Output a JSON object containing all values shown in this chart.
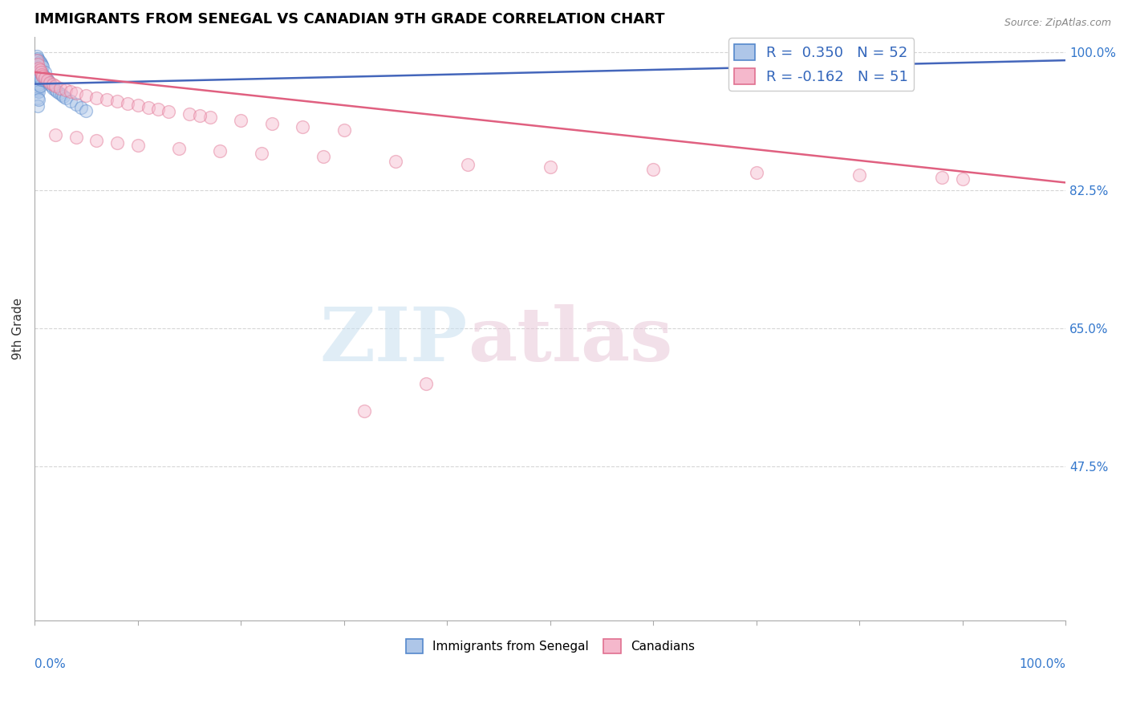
{
  "title": "IMMIGRANTS FROM SENEGAL VS CANADIAN 9TH GRADE CORRELATION CHART",
  "source": "Source: ZipAtlas.com",
  "ylabel": "9th Grade",
  "legend_r1": "R =  0.350",
  "legend_n1": "N = 52",
  "legend_r2": "R = -0.162",
  "legend_n2": "N = 51",
  "blue_color": "#aec6e8",
  "blue_edge": "#5588cc",
  "pink_color": "#f5b8cc",
  "pink_edge": "#e07090",
  "blue_line_color": "#4466bb",
  "pink_line_color": "#e06080",
  "watermark_zip": "ZIP",
  "watermark_atlas": "atlas",
  "blue_scatter_x": [
    0.001,
    0.001,
    0.001,
    0.002,
    0.002,
    0.002,
    0.002,
    0.002,
    0.003,
    0.003,
    0.003,
    0.003,
    0.003,
    0.003,
    0.003,
    0.004,
    0.004,
    0.004,
    0.004,
    0.004,
    0.004,
    0.005,
    0.005,
    0.005,
    0.005,
    0.006,
    0.006,
    0.006,
    0.007,
    0.007,
    0.008,
    0.008,
    0.009,
    0.01,
    0.01,
    0.011,
    0.012,
    0.013,
    0.014,
    0.015,
    0.016,
    0.018,
    0.02,
    0.022,
    0.024,
    0.026,
    0.028,
    0.03,
    0.035,
    0.04,
    0.045,
    0.05
  ],
  "blue_scatter_y": [
    0.99,
    0.98,
    0.97,
    0.995,
    0.985,
    0.975,
    0.965,
    0.955,
    0.992,
    0.982,
    0.972,
    0.962,
    0.952,
    0.942,
    0.932,
    0.99,
    0.98,
    0.97,
    0.96,
    0.95,
    0.94,
    0.988,
    0.978,
    0.968,
    0.958,
    0.986,
    0.976,
    0.966,
    0.984,
    0.974,
    0.982,
    0.972,
    0.97,
    0.975,
    0.965,
    0.968,
    0.966,
    0.964,
    0.962,
    0.96,
    0.958,
    0.955,
    0.952,
    0.95,
    0.948,
    0.946,
    0.944,
    0.942,
    0.938,
    0.934,
    0.93,
    0.926
  ],
  "pink_scatter_x": [
    0.002,
    0.003,
    0.004,
    0.005,
    0.006,
    0.007,
    0.008,
    0.01,
    0.012,
    0.015,
    0.018,
    0.02,
    0.025,
    0.03,
    0.035,
    0.04,
    0.05,
    0.06,
    0.07,
    0.08,
    0.09,
    0.1,
    0.11,
    0.12,
    0.13,
    0.15,
    0.17,
    0.2,
    0.23,
    0.26,
    0.3,
    0.02,
    0.04,
    0.06,
    0.08,
    0.1,
    0.14,
    0.18,
    0.22,
    0.28,
    0.35,
    0.42,
    0.5,
    0.6,
    0.7,
    0.8,
    0.88,
    0.9,
    0.38,
    0.32,
    0.16
  ],
  "pink_scatter_y": [
    0.99,
    0.985,
    0.98,
    0.978,
    0.975,
    0.972,
    0.97,
    0.968,
    0.965,
    0.962,
    0.96,
    0.958,
    0.955,
    0.952,
    0.95,
    0.948,
    0.945,
    0.942,
    0.94,
    0.938,
    0.935,
    0.933,
    0.93,
    0.928,
    0.925,
    0.922,
    0.918,
    0.914,
    0.91,
    0.906,
    0.902,
    0.895,
    0.892,
    0.888,
    0.885,
    0.882,
    0.878,
    0.875,
    0.872,
    0.868,
    0.862,
    0.858,
    0.855,
    0.852,
    0.848,
    0.845,
    0.842,
    0.84,
    0.58,
    0.545,
    0.92
  ],
  "blue_line_x0": 0.0,
  "blue_line_x1": 1.0,
  "blue_line_y0": 0.96,
  "blue_line_y1": 0.99,
  "pink_line_x0": 0.0,
  "pink_line_x1": 1.0,
  "pink_line_y0": 0.975,
  "pink_line_y1": 0.835,
  "xlim": [
    0.0,
    1.0
  ],
  "ylim": [
    0.28,
    1.02
  ],
  "yticks": [
    1.0,
    0.825,
    0.65,
    0.475
  ],
  "ytick_labels": [
    "100.0%",
    "82.5%",
    "65.0%",
    "47.5%"
  ],
  "xticks": [
    0.0,
    0.1,
    0.2,
    0.3,
    0.4,
    0.5,
    0.6,
    0.7,
    0.8,
    0.9,
    1.0
  ],
  "grid_color": "#cccccc",
  "grid_alpha": 0.8,
  "scatter_size": 130,
  "scatter_alpha": 0.45,
  "scatter_linewidth": 1.0
}
